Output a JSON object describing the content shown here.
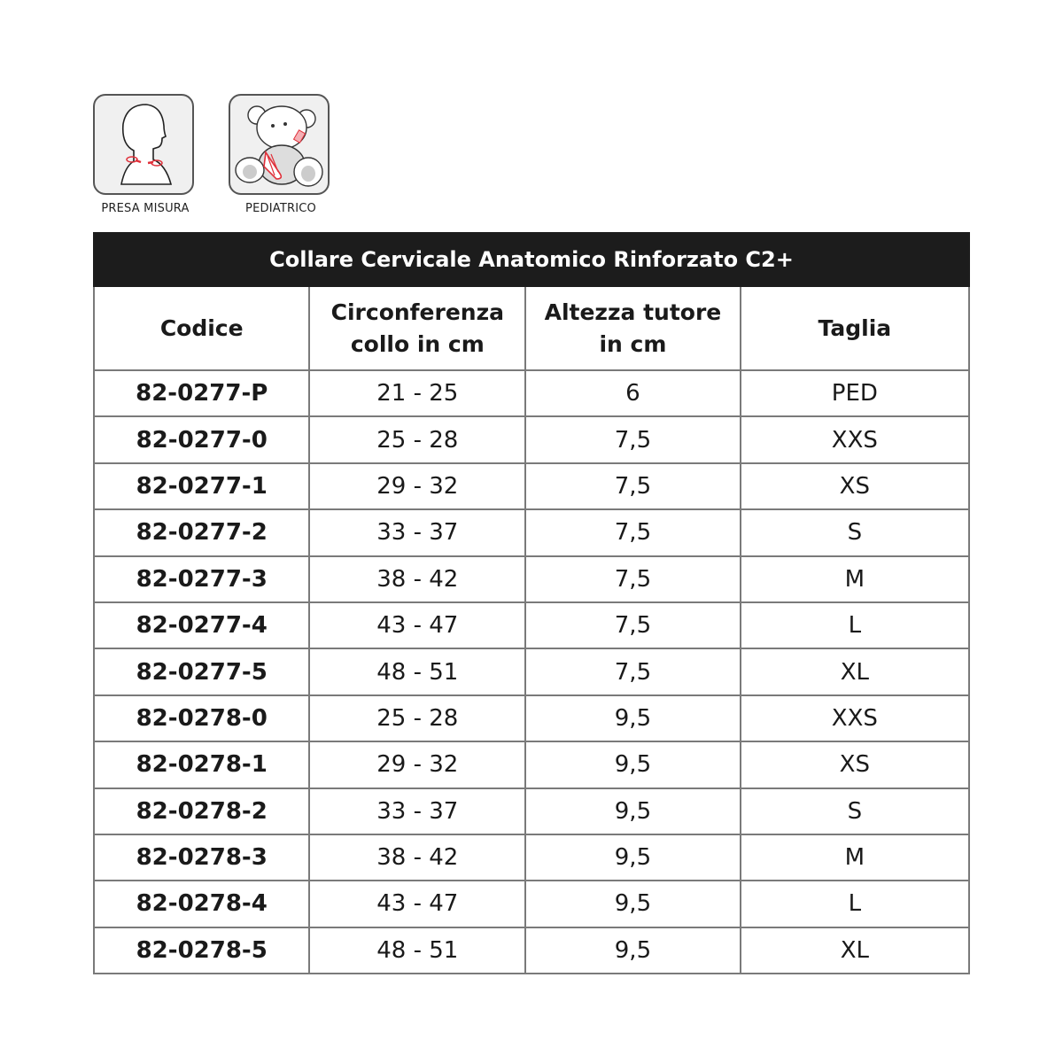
{
  "icons": [
    {
      "name": "head-neck-measure-icon",
      "label": "PRESA MISURA"
    },
    {
      "name": "teddy-bear-icon",
      "label": "PEDIATRICO"
    }
  ],
  "colors": {
    "title_bar": "#1c1c1c",
    "accent": "#e0303a",
    "border": "#7a7a7a"
  },
  "table": {
    "title": "Collare Cervicale Anatomico Rinforzato C2+",
    "headers": [
      {
        "line1": "Codice",
        "line2": ""
      },
      {
        "line1": "Circonferenza",
        "line2": "collo in cm"
      },
      {
        "line1": "Altezza tutore",
        "line2": "in cm"
      },
      {
        "line1": "Taglia",
        "line2": ""
      }
    ],
    "rows": [
      [
        "82-0277-P",
        "21 - 25",
        "6",
        "PED"
      ],
      [
        "82-0277-0",
        "25 - 28",
        "7,5",
        "XXS"
      ],
      [
        "82-0277-1",
        "29 - 32",
        "7,5",
        "XS"
      ],
      [
        "82-0277-2",
        "33 - 37",
        "7,5",
        "S"
      ],
      [
        "82-0277-3",
        "38 - 42",
        "7,5",
        "M"
      ],
      [
        "82-0277-4",
        "43 - 47",
        "7,5",
        "L"
      ],
      [
        "82-0277-5",
        "48 - 51",
        "7,5",
        "XL"
      ],
      [
        "82-0278-0",
        "25 - 28",
        "9,5",
        "XXS"
      ],
      [
        "82-0278-1",
        "29 - 32",
        "9,5",
        "XS"
      ],
      [
        "82-0278-2",
        "33 - 37",
        "9,5",
        "S"
      ],
      [
        "82-0278-3",
        "38 - 42",
        "9,5",
        "M"
      ],
      [
        "82-0278-4",
        "43 - 47",
        "9,5",
        "L"
      ],
      [
        "82-0278-5",
        "48 - 51",
        "9,5",
        "XL"
      ]
    ]
  }
}
